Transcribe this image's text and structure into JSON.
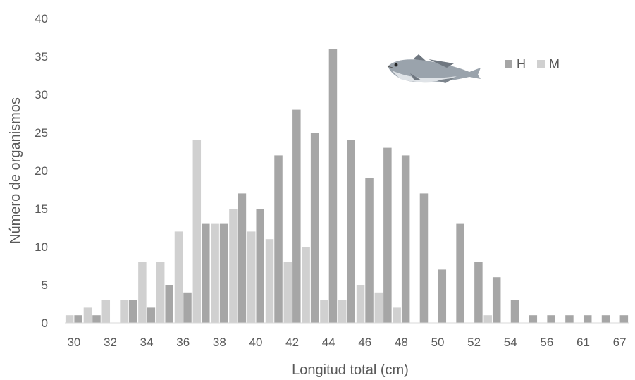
{
  "chart_data": {
    "type": "bar",
    "xlabel": "Longitud total (cm)",
    "ylabel": "Número de organismos",
    "ylim": [
      0,
      40
    ],
    "yticks": [
      0,
      5,
      10,
      15,
      20,
      25,
      30,
      35,
      40
    ],
    "grid": false,
    "legend_position": "top-right",
    "categories": [
      "30",
      "31",
      "32",
      "33",
      "34",
      "35",
      "36",
      "37",
      "38",
      "39",
      "40",
      "41",
      "42",
      "43",
      "44",
      "45",
      "46",
      "47",
      "48",
      "49",
      "50",
      "51",
      "52",
      "53",
      "54",
      "55",
      "56",
      "57",
      "61",
      "62",
      "67"
    ],
    "x_tick_labels": [
      "30",
      "",
      "32",
      "",
      "34",
      "",
      "36",
      "",
      "38",
      "",
      "40",
      "",
      "42",
      "",
      "44",
      "",
      "46",
      "",
      "48",
      "",
      "50",
      "",
      "52",
      "",
      "54",
      "",
      "56",
      "",
      "61",
      "",
      "67"
    ],
    "series": [
      {
        "name": "H",
        "color": "#a6a6a6",
        "values": [
          1,
          1,
          0,
          3,
          2,
          5,
          4,
          13,
          13,
          17,
          15,
          22,
          28,
          25,
          36,
          24,
          19,
          23,
          22,
          17,
          7,
          13,
          8,
          6,
          3,
          1,
          1,
          1,
          1,
          1,
          1
        ]
      },
      {
        "name": "M",
        "color": "#d0d0d0",
        "values": [
          1,
          2,
          3,
          3,
          8,
          8,
          12,
          24,
          13,
          15,
          12,
          11,
          8,
          10,
          3,
          3,
          5,
          4,
          2,
          0,
          0,
          0,
          0,
          1,
          0,
          0,
          0,
          0,
          0,
          0,
          0
        ]
      }
    ],
    "legend_icon": "fish-icon"
  }
}
